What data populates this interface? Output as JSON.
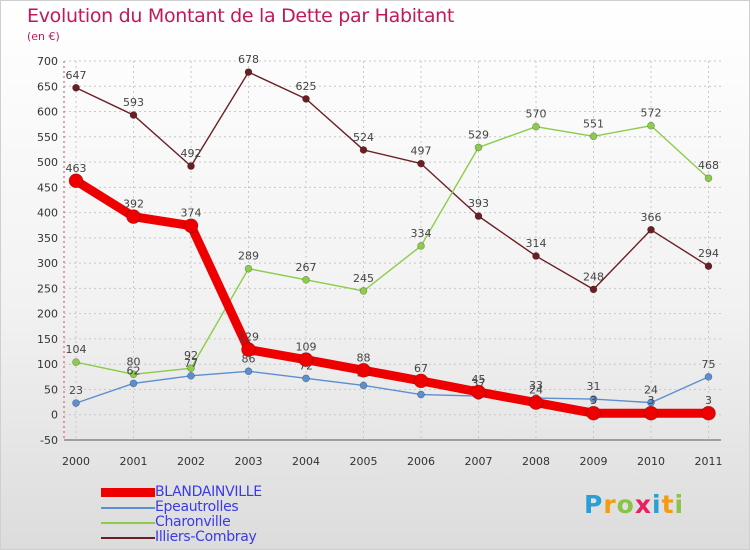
{
  "header": {
    "title": "Evolution du Montant de la Dette par Habitant",
    "subtitle": "(en €)"
  },
  "logo": {
    "letters": [
      "P",
      "r",
      "o",
      "x",
      "i",
      "t",
      "i"
    ],
    "colors": [
      "#2a9fd6",
      "#f39c12",
      "#8bc34a",
      "#e91e63",
      "#2a9fd6",
      "#f39c12",
      "#8bc34a"
    ]
  },
  "chart_data": {
    "type": "line",
    "title": "Evolution du Montant de la Dette par Habitant",
    "ylabel": "(en €)",
    "xlabel": "",
    "x": [
      "2000",
      "2001",
      "2002",
      "2003",
      "2004",
      "2005",
      "2006",
      "2007",
      "2008",
      "2009",
      "2010",
      "2011"
    ],
    "ylim": [
      -50,
      700
    ],
    "yticks": [
      -50,
      0,
      50,
      100,
      150,
      200,
      250,
      300,
      350,
      400,
      450,
      500,
      550,
      600,
      650,
      700
    ],
    "grid": true,
    "legend_position": "bottom-left",
    "series": [
      {
        "name": "Illiers-Combray",
        "color": "#6b1f24",
        "values": [
          647,
          593,
          492,
          678,
          625,
          524,
          497,
          393,
          314,
          248,
          366,
          294
        ],
        "labels": [
          "647",
          "593",
          "492",
          "678",
          "625",
          "524",
          "497",
          "393",
          "314",
          "248",
          "366",
          "294"
        ]
      },
      {
        "name": "Charonville",
        "color": "#8ccc4a",
        "values": [
          104,
          80,
          92,
          289,
          267,
          245,
          334,
          529,
          570,
          551,
          572,
          468
        ],
        "labels": [
          "104",
          "80",
          "92",
          "289",
          "267",
          "245",
          "334",
          "529",
          "570",
          "551",
          "572",
          "468"
        ]
      },
      {
        "name": "Epeautrolles",
        "color": "#5b8fd0",
        "values": [
          23,
          62,
          77,
          86,
          72,
          58,
          40,
          37,
          33,
          31,
          24,
          75
        ],
        "labels": [
          "23",
          "62",
          "77",
          "86",
          "72",
          "58",
          "40",
          "37",
          "33",
          "31",
          "24",
          "75"
        ]
      },
      {
        "name": "BLANDAINVILLE",
        "color": "#ee0000",
        "values": [
          463,
          392,
          374,
          129,
          109,
          88,
          67,
          45,
          24,
          3,
          3,
          3
        ],
        "labels": [
          "463",
          "392",
          "374",
          "129",
          "109",
          "88",
          "67",
          "45",
          "24",
          "3",
          "3",
          "3"
        ]
      }
    ],
    "legend_order": [
      "BLANDAINVILLE",
      "Epeautrolles",
      "Charonville",
      "Illiers-Combray"
    ]
  }
}
